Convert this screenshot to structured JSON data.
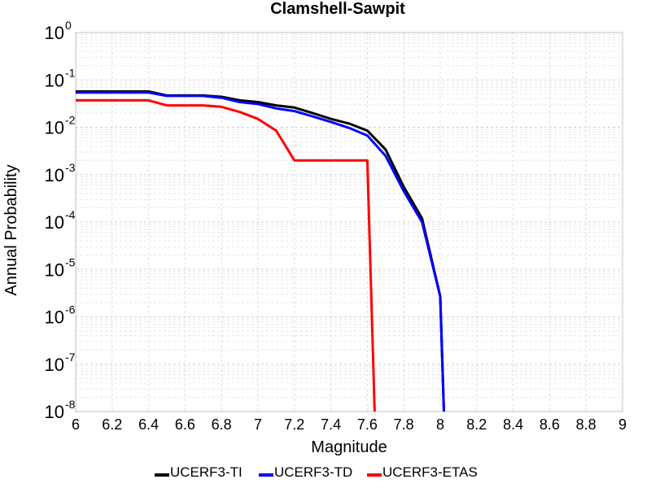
{
  "chart_data": {
    "type": "line",
    "title": "Clamshell-Sawpit",
    "xlabel": "Magnitude",
    "ylabel": "Annual Probability",
    "xlim": [
      6,
      9
    ],
    "ylim": [
      1e-08,
      1
    ],
    "y_scale": "log",
    "grid": true,
    "legend_position": "bottom",
    "x_ticks": [
      "6",
      "6.2",
      "6.4",
      "6.6",
      "6.8",
      "7",
      "7.2",
      "7.4",
      "7.6",
      "7.8",
      "8",
      "8.2",
      "8.4",
      "8.6",
      "8.8",
      "9"
    ],
    "y_ticks": [
      {
        "base": "10",
        "exp": "0"
      },
      {
        "base": "10",
        "exp": "-1"
      },
      {
        "base": "10",
        "exp": "-2"
      },
      {
        "base": "10",
        "exp": "-3"
      },
      {
        "base": "10",
        "exp": "-4"
      },
      {
        "base": "10",
        "exp": "-5"
      },
      {
        "base": "10",
        "exp": "-6"
      },
      {
        "base": "10",
        "exp": "-7"
      },
      {
        "base": "10",
        "exp": "-8"
      }
    ],
    "series": [
      {
        "name": "UCERF3-TI",
        "color": "#000000",
        "x": [
          6.0,
          6.1,
          6.2,
          6.3,
          6.4,
          6.5,
          6.6,
          6.7,
          6.8,
          6.9,
          7.0,
          7.1,
          7.2,
          7.3,
          7.4,
          7.5,
          7.6,
          7.7,
          7.8,
          7.9,
          8.0,
          8.02
        ],
        "y": [
          0.057,
          0.057,
          0.057,
          0.057,
          0.057,
          0.047,
          0.047,
          0.047,
          0.044,
          0.037,
          0.034,
          0.029,
          0.026,
          0.02,
          0.015,
          0.012,
          0.0085,
          0.0034,
          0.00055,
          0.00012,
          2.7e-06,
          1e-08
        ]
      },
      {
        "name": "UCERF3-TD",
        "color": "#0000ff",
        "x": [
          6.0,
          6.1,
          6.2,
          6.3,
          6.4,
          6.5,
          6.6,
          6.7,
          6.8,
          6.9,
          7.0,
          7.1,
          7.2,
          7.3,
          7.4,
          7.5,
          7.6,
          7.7,
          7.8,
          7.9,
          8.0,
          8.02
        ],
        "y": [
          0.054,
          0.054,
          0.054,
          0.054,
          0.054,
          0.046,
          0.046,
          0.046,
          0.042,
          0.034,
          0.031,
          0.025,
          0.022,
          0.017,
          0.013,
          0.0097,
          0.0067,
          0.0025,
          0.00045,
          0.0001,
          2.7e-06,
          1e-08
        ]
      },
      {
        "name": "UCERF3-ETAS",
        "color": "#ff0000",
        "x": [
          6.0,
          6.1,
          6.2,
          6.3,
          6.4,
          6.5,
          6.6,
          6.7,
          6.8,
          6.9,
          7.0,
          7.1,
          7.2,
          7.3,
          7.4,
          7.5,
          7.6,
          7.64
        ],
        "y": [
          0.037,
          0.037,
          0.037,
          0.037,
          0.037,
          0.029,
          0.029,
          0.029,
          0.027,
          0.021,
          0.015,
          0.0085,
          0.002,
          0.002,
          0.002,
          0.002,
          0.002,
          1e-08
        ]
      }
    ]
  }
}
